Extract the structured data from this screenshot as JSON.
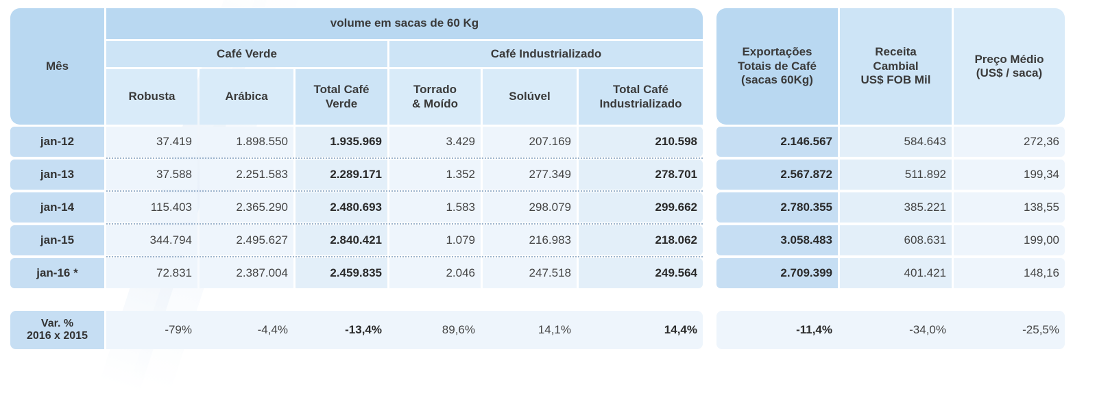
{
  "header": {
    "mes": "Mês",
    "volume": "volume em sacas de 60 Kg",
    "cafe_verde": "Café Verde",
    "cafe_industrializado": "Café Industrializado",
    "robusta": "Robusta",
    "arabica": "Arábica",
    "total_verde_1": "Total Café",
    "total_verde_2": "Verde",
    "torrado_1": "Torrado",
    "torrado_2": "& Moído",
    "soluvel": "Solúvel",
    "total_ind_1": "Total Café",
    "total_ind_2": "Industrializado",
    "export_1": "Exportações",
    "export_2": "Totais de Café",
    "export_3": "(sacas 60Kg)",
    "receita_1": "Receita",
    "receita_2": "Cambial",
    "receita_3": "US$ FOB Mil",
    "preco_1": "Preço Médio",
    "preco_2": "(US$ / saca)"
  },
  "rows": [
    {
      "mes": "jan-12",
      "robusta": "37.419",
      "arabica": "1.898.550",
      "total_verde": "1.935.969",
      "torrado": "3.429",
      "soluvel": "207.169",
      "total_ind": "210.598",
      "export": "2.146.567",
      "receita": "584.643",
      "preco": "272,36"
    },
    {
      "mes": "jan-13",
      "robusta": "37.588",
      "arabica": "2.251.583",
      "total_verde": "2.289.171",
      "torrado": "1.352",
      "soluvel": "277.349",
      "total_ind": "278.701",
      "export": "2.567.872",
      "receita": "511.892",
      "preco": "199,34"
    },
    {
      "mes": "jan-14",
      "robusta": "115.403",
      "arabica": "2.365.290",
      "total_verde": "2.480.693",
      "torrado": "1.583",
      "soluvel": "298.079",
      "total_ind": "299.662",
      "export": "2.780.355",
      "receita": "385.221",
      "preco": "138,55"
    },
    {
      "mes": "jan-15",
      "robusta": "344.794",
      "arabica": "2.495.627",
      "total_verde": "2.840.421",
      "torrado": "1.079",
      "soluvel": "216.983",
      "total_ind": "218.062",
      "export": "3.058.483",
      "receita": "608.631",
      "preco": "199,00"
    },
    {
      "mes": "jan-16 *",
      "robusta": "72.831",
      "arabica": "2.387.004",
      "total_verde": "2.459.835",
      "torrado": "2.046",
      "soluvel": "247.518",
      "total_ind": "249.564",
      "export": "2.709.399",
      "receita": "401.421",
      "preco": "148,16"
    }
  ],
  "variation": {
    "mes_1": "Var. %",
    "mes_2": "2016 x 2015",
    "robusta": "-79%",
    "arabica": "-4,4%",
    "total_verde": "-13,4%",
    "torrado": "89,6%",
    "soluvel": "14,1%",
    "total_ind": "14,4%",
    "export": "-11,4%",
    "receita": "-34,0%",
    "preco": "-25,5%"
  },
  "colors": {
    "header_dark": "#b9d8f1",
    "header_mid": "#cde4f6",
    "header_light": "#d9ebf9",
    "row_dark": "#c6def3",
    "row_light": "#e3eff9",
    "row_lighter": "#eef5fc"
  }
}
